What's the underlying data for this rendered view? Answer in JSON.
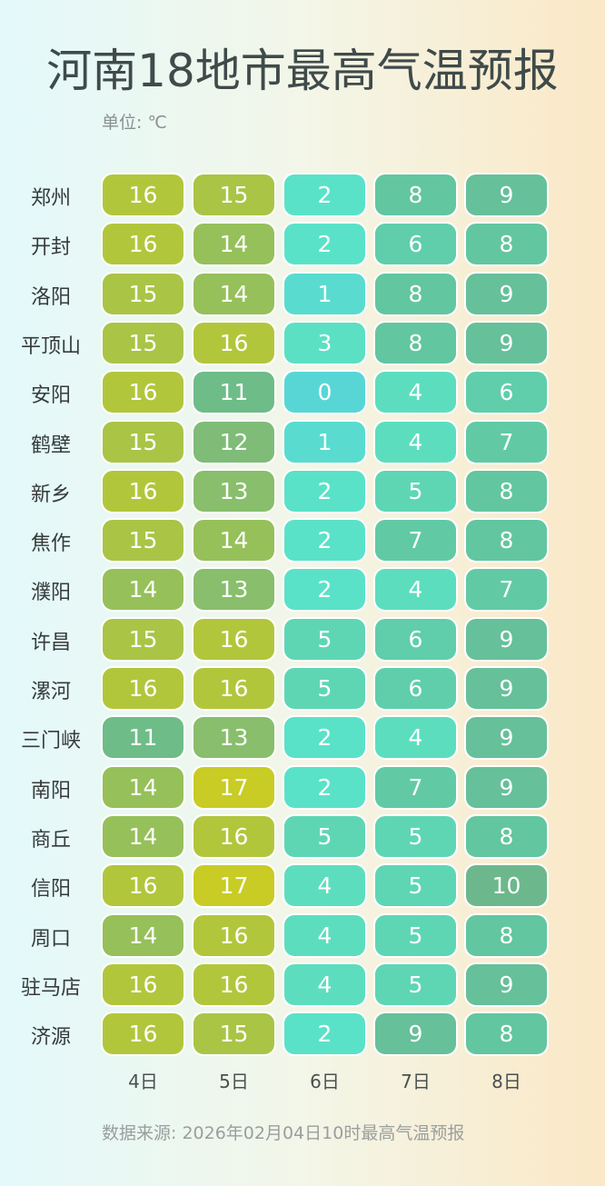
{
  "title": "河南18地市最高气温预报",
  "unit_label": "单位: ℃",
  "source_note": "数据来源: 2026年02月04日10时最高气温预报",
  "chart_data": {
    "type": "heatmap",
    "title": "河南18地市最高气温预报",
    "unit": "℃",
    "x_labels": [
      "4日",
      "5日",
      "6日",
      "7日",
      "8日"
    ],
    "y_labels": [
      "郑州",
      "开封",
      "洛阳",
      "平顶山",
      "安阳",
      "鹤壁",
      "新乡",
      "焦作",
      "濮阳",
      "许昌",
      "漯河",
      "三门峡",
      "南阳",
      "商丘",
      "信阳",
      "周口",
      "驻马店",
      "济源"
    ],
    "values": [
      [
        16,
        15,
        2,
        8,
        9
      ],
      [
        16,
        14,
        2,
        6,
        8
      ],
      [
        15,
        14,
        1,
        8,
        9
      ],
      [
        15,
        16,
        3,
        8,
        9
      ],
      [
        16,
        11,
        0,
        4,
        6
      ],
      [
        15,
        12,
        1,
        4,
        7
      ],
      [
        16,
        13,
        2,
        5,
        8
      ],
      [
        15,
        14,
        2,
        7,
        8
      ],
      [
        14,
        13,
        2,
        4,
        7
      ],
      [
        15,
        16,
        5,
        6,
        9
      ],
      [
        16,
        16,
        5,
        6,
        9
      ],
      [
        11,
        13,
        2,
        4,
        9
      ],
      [
        14,
        17,
        2,
        7,
        9
      ],
      [
        14,
        16,
        5,
        5,
        8
      ],
      [
        16,
        17,
        4,
        5,
        10
      ],
      [
        14,
        16,
        4,
        5,
        8
      ],
      [
        16,
        16,
        4,
        5,
        9
      ],
      [
        16,
        15,
        2,
        9,
        8
      ]
    ],
    "legend": "none"
  }
}
